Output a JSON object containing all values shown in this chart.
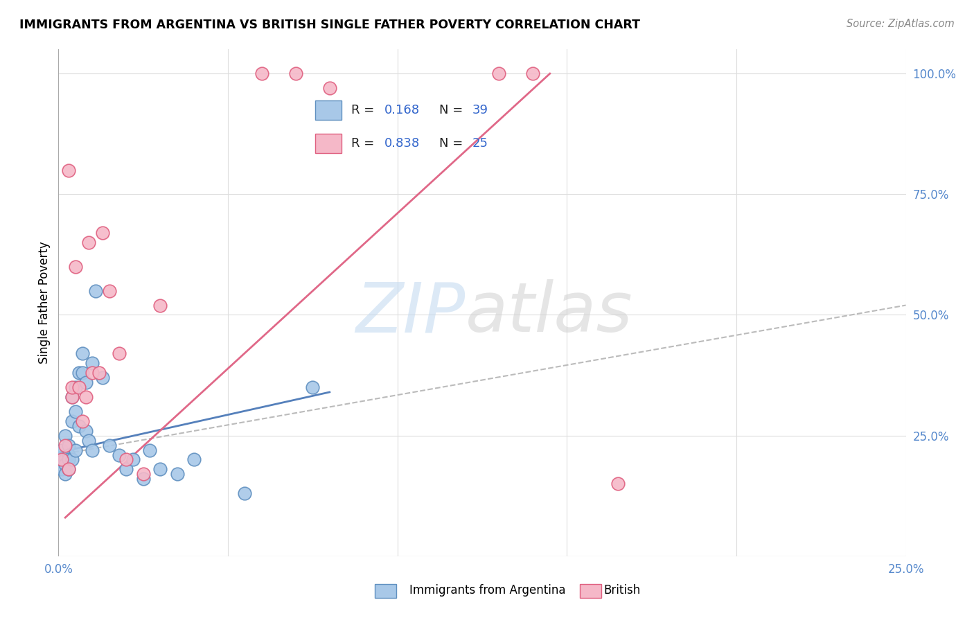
{
  "title": "IMMIGRANTS FROM ARGENTINA VS BRITISH SINGLE FATHER POVERTY CORRELATION CHART",
  "source": "Source: ZipAtlas.com",
  "ylabel": "Single Father Poverty",
  "xlim": [
    0.0,
    0.25
  ],
  "ylim": [
    0.0,
    1.05
  ],
  "blue_color": "#a8c8e8",
  "pink_color": "#f5b8c8",
  "blue_edge_color": "#6090c0",
  "pink_edge_color": "#e06080",
  "blue_line_color": "#5580bb",
  "pink_line_color": "#e06888",
  "dashed_line_color": "#bbbbbb",
  "blue_scatter_x": [
    0.001,
    0.001,
    0.001,
    0.002,
    0.002,
    0.002,
    0.002,
    0.003,
    0.003,
    0.003,
    0.003,
    0.004,
    0.004,
    0.004,
    0.005,
    0.005,
    0.005,
    0.006,
    0.006,
    0.007,
    0.007,
    0.008,
    0.008,
    0.009,
    0.01,
    0.01,
    0.011,
    0.013,
    0.015,
    0.018,
    0.02,
    0.022,
    0.025,
    0.027,
    0.03,
    0.035,
    0.04,
    0.055,
    0.075
  ],
  "blue_scatter_y": [
    0.2,
    0.18,
    0.22,
    0.25,
    0.2,
    0.19,
    0.17,
    0.23,
    0.21,
    0.2,
    0.18,
    0.28,
    0.33,
    0.2,
    0.35,
    0.3,
    0.22,
    0.38,
    0.27,
    0.42,
    0.38,
    0.36,
    0.26,
    0.24,
    0.4,
    0.22,
    0.55,
    0.37,
    0.23,
    0.21,
    0.18,
    0.2,
    0.16,
    0.22,
    0.18,
    0.17,
    0.2,
    0.13,
    0.35
  ],
  "pink_scatter_x": [
    0.001,
    0.002,
    0.003,
    0.003,
    0.004,
    0.004,
    0.005,
    0.006,
    0.007,
    0.008,
    0.009,
    0.01,
    0.012,
    0.013,
    0.015,
    0.018,
    0.02,
    0.025,
    0.03,
    0.06,
    0.07,
    0.08,
    0.13,
    0.14,
    0.165
  ],
  "pink_scatter_y": [
    0.2,
    0.23,
    0.18,
    0.8,
    0.33,
    0.35,
    0.6,
    0.35,
    0.28,
    0.33,
    0.65,
    0.38,
    0.38,
    0.67,
    0.55,
    0.42,
    0.2,
    0.17,
    0.52,
    1.0,
    1.0,
    0.97,
    1.0,
    1.0,
    0.15
  ],
  "blue_line_x": [
    0.0,
    0.08
  ],
  "blue_line_y": [
    0.215,
    0.34
  ],
  "pink_line_x": [
    0.002,
    0.145
  ],
  "pink_line_y": [
    0.08,
    1.0
  ],
  "dashed_line_x": [
    0.0,
    0.25
  ],
  "dashed_line_y": [
    0.21,
    0.52
  ],
  "x_tick_positions": [
    0.0,
    0.05,
    0.1,
    0.15,
    0.2,
    0.25
  ],
  "x_tick_labels": [
    "0.0%",
    "",
    "",
    "",
    "",
    "25.0%"
  ],
  "y_tick_positions": [
    0.0,
    0.25,
    0.5,
    0.75,
    1.0
  ],
  "y_tick_labels": [
    "",
    "25.0%",
    "50.0%",
    "75.0%",
    "100.0%"
  ]
}
